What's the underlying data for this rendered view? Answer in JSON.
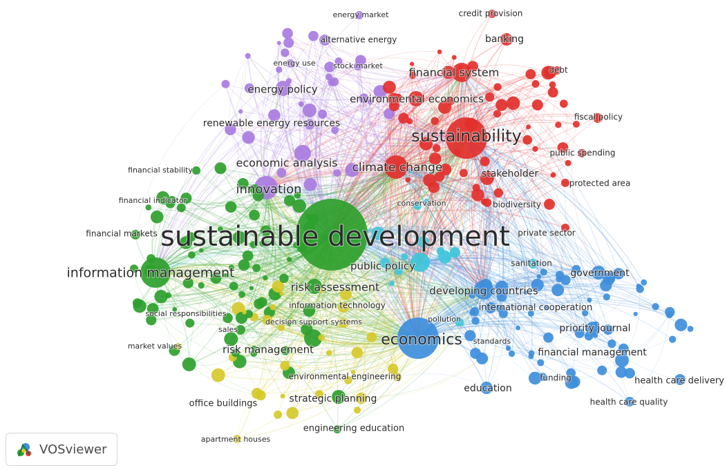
{
  "app": {
    "name": "VOSviewer",
    "logo_icon": "vosviewer-logo-icon"
  },
  "clusters": {
    "red": "#e2302c",
    "green": "#2ea02c",
    "blue": "#3e8edc",
    "yellow": "#d6c92a",
    "purple": "#a87ce0",
    "cyan": "#3fc6da"
  },
  "labels": [
    {
      "text": "sustainable development",
      "cluster": "green"
    },
    {
      "text": "sustainability",
      "cluster": "red"
    },
    {
      "text": "economics",
      "cluster": "blue"
    },
    {
      "text": "information management",
      "cluster": "green"
    },
    {
      "text": "innovation",
      "cluster": "purple"
    },
    {
      "text": "climate change",
      "cluster": "red"
    },
    {
      "text": "financial system",
      "cluster": "red"
    },
    {
      "text": "environmental economics",
      "cluster": "red"
    },
    {
      "text": "economic analysis",
      "cluster": "purple"
    },
    {
      "text": "energy policy",
      "cluster": "purple"
    },
    {
      "text": "renewable energy resources",
      "cluster": "purple"
    },
    {
      "text": "risk assessment",
      "cluster": "green"
    },
    {
      "text": "public policy",
      "cluster": "cyan"
    },
    {
      "text": "developing countries",
      "cluster": "blue"
    },
    {
      "text": "risk management",
      "cluster": "green"
    },
    {
      "text": "strategic planning",
      "cluster": "green"
    },
    {
      "text": "stakeholder",
      "cluster": "red"
    },
    {
      "text": "banking",
      "cluster": "red"
    },
    {
      "text": "government",
      "cluster": "blue"
    },
    {
      "text": "financial management",
      "cluster": "blue"
    },
    {
      "text": "priority journal",
      "cluster": "blue"
    },
    {
      "text": "education",
      "cluster": "blue"
    },
    {
      "text": "international cooperation",
      "cluster": "blue"
    },
    {
      "text": "health care delivery",
      "cluster": "blue"
    },
    {
      "text": "office buildings",
      "cluster": "yellow"
    },
    {
      "text": "engineering education",
      "cluster": "green"
    },
    {
      "text": "environmental engineering",
      "cluster": "green"
    },
    {
      "text": "information technology",
      "cluster": "yellow"
    },
    {
      "text": "decision support systems",
      "cluster": "yellow"
    },
    {
      "text": "social responsibilities",
      "cluster": "green"
    },
    {
      "text": "sales",
      "cluster": "green"
    },
    {
      "text": "market values",
      "cluster": "yellow"
    },
    {
      "text": "financial markets",
      "cluster": "green"
    },
    {
      "text": "financial indicator",
      "cluster": "green"
    },
    {
      "text": "financial stability",
      "cluster": "green"
    },
    {
      "text": "alternative energy",
      "cluster": "purple"
    },
    {
      "text": "energy market",
      "cluster": "purple"
    },
    {
      "text": "energy use",
      "cluster": "purple"
    },
    {
      "text": "stock market",
      "cluster": "purple"
    },
    {
      "text": "credit provision",
      "cluster": "red"
    },
    {
      "text": "debt",
      "cluster": "red"
    },
    {
      "text": "fiscal policy",
      "cluster": "red"
    },
    {
      "text": "public spending",
      "cluster": "red"
    },
    {
      "text": "protected area",
      "cluster": "red"
    },
    {
      "text": "biodiversity",
      "cluster": "red"
    },
    {
      "text": "private sector",
      "cluster": "red"
    },
    {
      "text": "conservation",
      "cluster": "cyan"
    },
    {
      "text": "sanitation",
      "cluster": "cyan"
    },
    {
      "text": "pollution",
      "cluster": "cyan"
    },
    {
      "text": "standards",
      "cluster": "blue"
    },
    {
      "text": "funding",
      "cluster": "blue"
    },
    {
      "text": "health care quality",
      "cluster": "blue"
    },
    {
      "text": "apartment houses",
      "cluster": "yellow"
    }
  ]
}
